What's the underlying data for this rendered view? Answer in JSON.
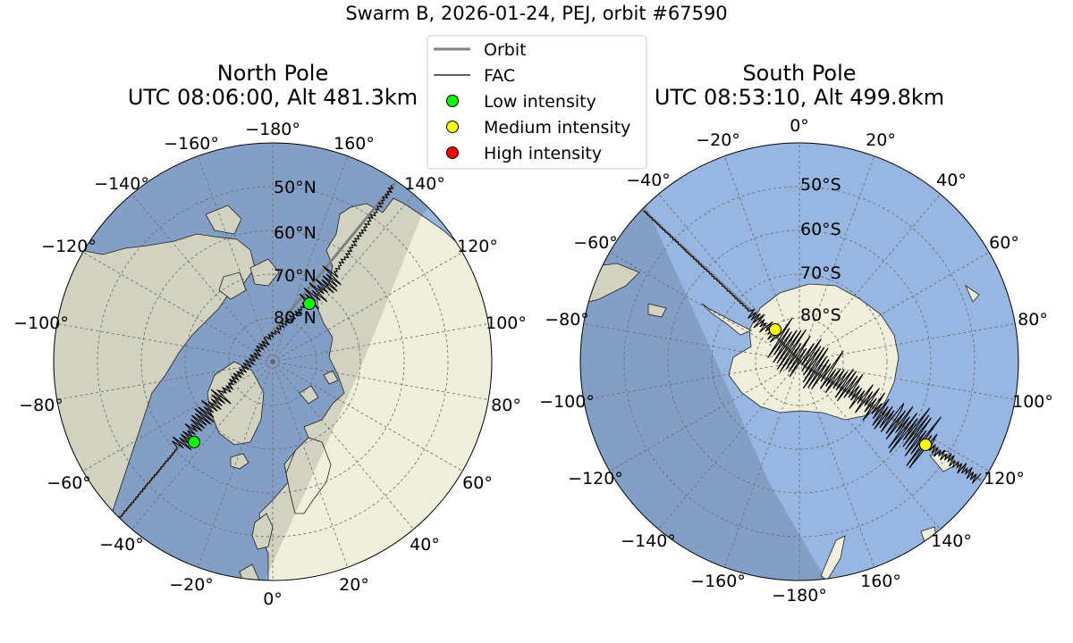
{
  "figure_title": "Swarm B, 2026-01-24, PEJ, orbit #67590",
  "north": {
    "title_line1": "North Pole",
    "title_line2": "UTC 08:06:00, Alt 481.3km",
    "lon_labels": [
      "−180°",
      "160°",
      "140°",
      "120°",
      "100°",
      "80°",
      "60°",
      "40°",
      "20°",
      "0°",
      "−20°",
      "−40°",
      "−60°",
      "−80°",
      "−100°",
      "−120°",
      "−140°",
      "−160°"
    ],
    "lat_labels": [
      "50°N",
      "60°N",
      "70°N",
      "80°N"
    ],
    "markers": [
      {
        "intensity": "low",
        "color": "#00ff00"
      },
      {
        "intensity": "low",
        "color": "#00ff00"
      }
    ]
  },
  "south": {
    "title_line1": "South Pole",
    "title_line2": "UTC 08:53:10, Alt 499.8km",
    "lon_labels": [
      "0°",
      "20°",
      "40°",
      "60°",
      "80°",
      "100°",
      "120°",
      "140°",
      "160°",
      "−180°",
      "−160°",
      "−140°",
      "−120°",
      "−100°",
      "−80°",
      "−60°",
      "−40°",
      "−20°"
    ],
    "lat_labels": [
      "50°S",
      "60°S",
      "70°S",
      "80°S"
    ],
    "markers": [
      {
        "intensity": "medium",
        "color": "#ffff00"
      },
      {
        "intensity": "medium",
        "color": "#ffff00"
      }
    ]
  },
  "legend": {
    "orbit": "Orbit",
    "fac": "FAC",
    "low": "Low intensity",
    "medium": "Medium intensity",
    "high": "High intensity",
    "colors": {
      "orbit": "#808080",
      "fac": "#000000",
      "low": "#00ff00",
      "medium": "#ffff00",
      "high": "#ff0000"
    }
  },
  "colors": {
    "ocean": "#97b6e1",
    "land": "#efefdb",
    "night_shade": "#000000"
  }
}
